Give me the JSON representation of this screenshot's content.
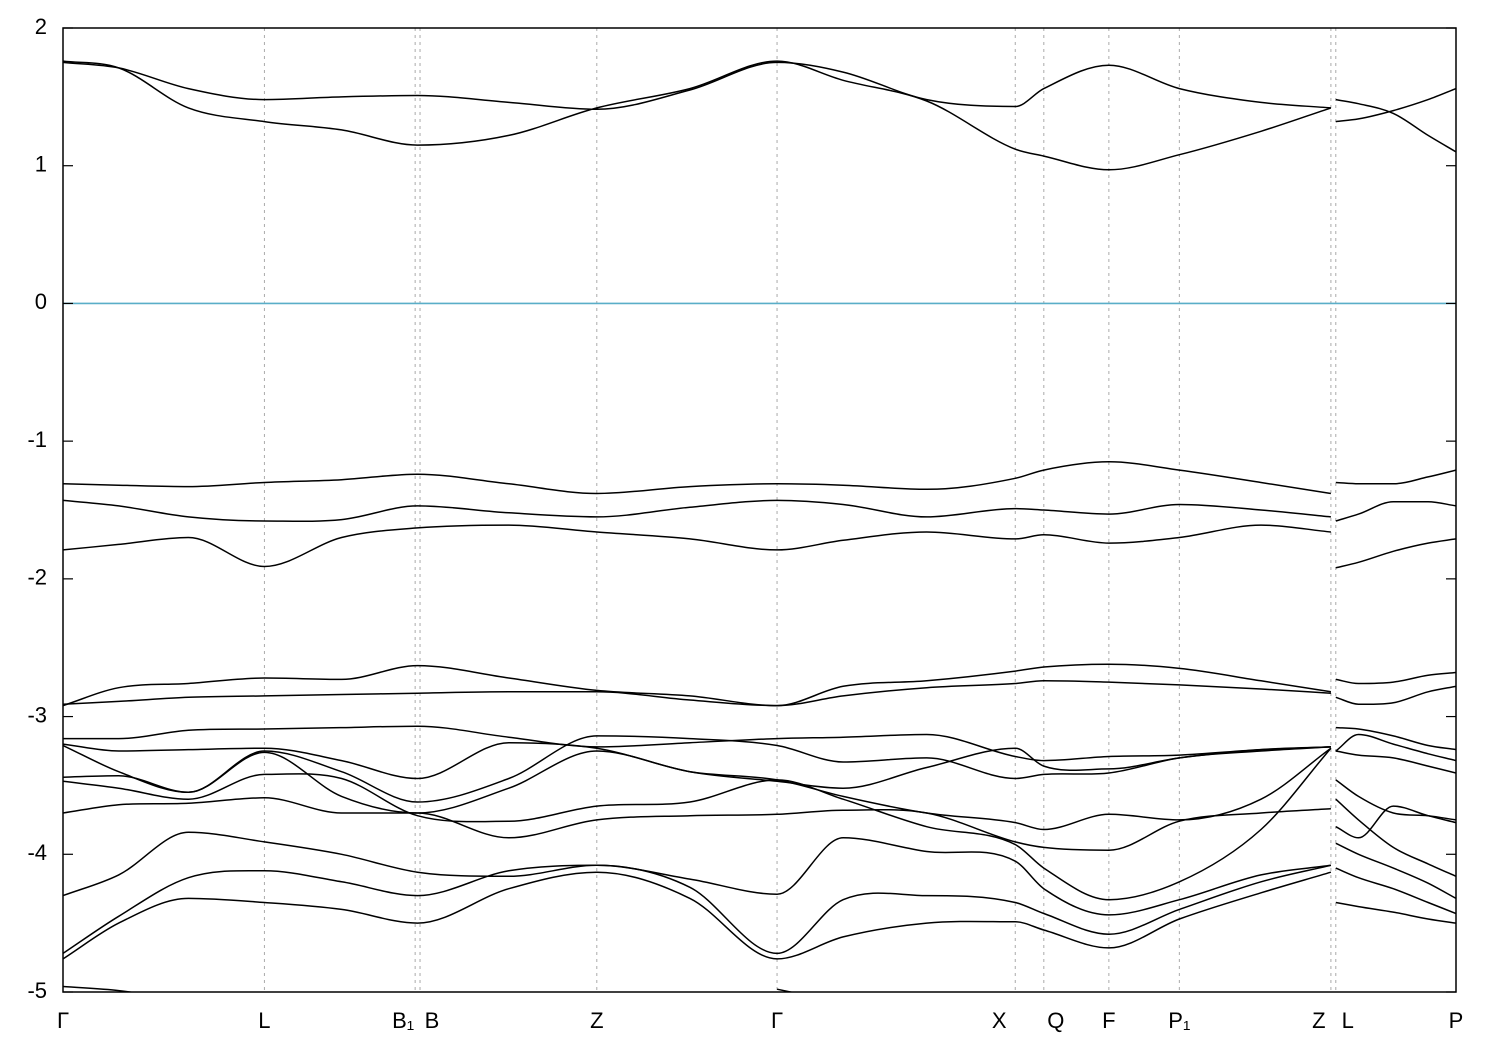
{
  "chart_data": {
    "type": "line",
    "title": "",
    "xlabel": "",
    "ylabel": "",
    "ylim": [
      -5,
      2
    ],
    "yticks": [
      2,
      1,
      0,
      -1,
      -2,
      -3,
      -4,
      -5
    ],
    "grid": "vertical dashed lines at high-symmetry points",
    "fermi_level": 0,
    "x_points": [
      {
        "label": "Γ",
        "x": 0
      },
      {
        "label": "L",
        "x": 0.1446
      },
      {
        "label": "B₁",
        "x": 0.2528
      },
      {
        "label": "B",
        "x": 0.2563
      },
      {
        "label": "Z",
        "x": 0.3832
      },
      {
        "label": "Γ",
        "x": 0.5126
      },
      {
        "label": "X",
        "x": 0.6836
      },
      {
        "label": "Q",
        "x": 0.7041
      },
      {
        "label": "F",
        "x": 0.7508
      },
      {
        "label": "P₁",
        "x": 0.8014
      },
      {
        "label": "Z",
        "x": 0.9102
      },
      {
        "label": "L",
        "x": 0.9137
      },
      {
        "label": "P",
        "x": 1.0
      }
    ],
    "segments": [
      {
        "x": [
          0,
          0.04,
          0.09,
          0.1446,
          0.2,
          0.2545,
          0.32,
          0.3832,
          0.45,
          0.5126,
          0.56,
          0.62,
          0.6836,
          0.7041,
          0.7508,
          0.8014,
          0.86,
          0.9102
        ],
        "bands": [
          [
            1.75,
            1.71,
            1.56,
            1.48,
            1.5,
            1.51,
            1.46,
            1.41,
            1.55,
            1.75,
            1.68,
            1.48,
            1.43,
            1.56,
            1.73,
            1.56,
            1.46,
            1.42
          ],
          [
            1.76,
            1.71,
            1.42,
            1.32,
            1.26,
            1.15,
            1.22,
            1.42,
            1.56,
            1.76,
            1.62,
            1.47,
            1.12,
            1.07,
            0.97,
            1.08,
            1.25,
            1.42
          ],
          [
            -1.31,
            -1.32,
            -1.33,
            -1.3,
            -1.28,
            -1.24,
            -1.31,
            -1.38,
            -1.33,
            -1.31,
            -1.32,
            -1.35,
            -1.27,
            -1.21,
            -1.15,
            -1.21,
            -1.3,
            -1.38
          ],
          [
            -1.43,
            -1.47,
            -1.55,
            -1.58,
            -1.57,
            -1.47,
            -1.52,
            -1.55,
            -1.48,
            -1.43,
            -1.46,
            -1.55,
            -1.49,
            -1.5,
            -1.53,
            -1.46,
            -1.5,
            -1.55
          ],
          [
            -1.79,
            -1.75,
            -1.7,
            -1.91,
            -1.7,
            -1.63,
            -1.61,
            -1.66,
            -1.71,
            -1.79,
            -1.72,
            -1.66,
            -1.71,
            -1.68,
            -1.74,
            -1.7,
            -1.61,
            -1.66
          ],
          [
            -2.92,
            -2.79,
            -2.76,
            -2.72,
            -2.73,
            -2.63,
            -2.72,
            -2.81,
            -2.85,
            -2.92,
            -2.78,
            -2.74,
            -2.67,
            -2.64,
            -2.62,
            -2.65,
            -2.74,
            -2.82
          ],
          [
            -2.91,
            -2.89,
            -2.86,
            -2.85,
            -2.84,
            -2.83,
            -2.82,
            -2.82,
            -2.88,
            -2.92,
            -2.85,
            -2.79,
            -2.76,
            -2.74,
            -2.75,
            -2.77,
            -2.8,
            -2.83
          ],
          [
            -3.16,
            -3.16,
            -3.1,
            -3.09,
            -3.08,
            -3.07,
            -3.15,
            -3.22,
            -3.19,
            -3.16,
            -3.15,
            -3.13,
            -3.29,
            -3.32,
            -3.29,
            -3.28,
            -3.24,
            -3.22
          ],
          [
            -3.2,
            -3.25,
            -3.24,
            -3.23,
            -3.32,
            -3.45,
            -3.19,
            -3.23,
            -3.4,
            -3.47,
            -3.52,
            -3.37,
            -3.23,
            -3.36,
            -3.38,
            -3.3,
            -3.24,
            -3.22
          ],
          [
            -3.21,
            -3.4,
            -3.55,
            -3.25,
            -3.4,
            -3.62,
            -3.45,
            -3.14,
            -3.16,
            -3.21,
            -3.33,
            -3.3,
            -3.45,
            -3.42,
            -3.41,
            -3.3,
            -3.25,
            -3.22
          ],
          [
            -3.44,
            -3.43,
            -3.55,
            -3.26,
            -3.58,
            -3.7,
            -3.52,
            -3.25,
            -3.4,
            -3.46,
            -3.58,
            -3.7,
            -3.77,
            -3.82,
            -3.71,
            -3.75,
            -3.6,
            -3.23
          ],
          [
            -3.47,
            -3.52,
            -3.6,
            -3.42,
            -3.45,
            -3.72,
            -3.76,
            -3.65,
            -3.62,
            -3.46,
            -3.6,
            -3.8,
            -3.93,
            -4.1,
            -4.33,
            -4.2,
            -3.82,
            -3.23
          ],
          [
            -3.7,
            -3.64,
            -3.63,
            -3.59,
            -3.7,
            -3.7,
            -3.88,
            -3.75,
            -3.72,
            -3.71,
            -3.68,
            -3.7,
            -3.91,
            -3.95,
            -3.97,
            -3.76,
            -3.7,
            -3.67
          ],
          [
            -4.3,
            -4.15,
            -3.84,
            -3.91,
            -4.0,
            -4.13,
            -4.16,
            -4.08,
            -4.18,
            -4.29,
            -3.88,
            -3.98,
            -4.05,
            -4.25,
            -4.44,
            -4.33,
            -4.15,
            -4.08
          ],
          [
            -4.72,
            -4.45,
            -4.17,
            -4.12,
            -4.2,
            -4.3,
            -4.12,
            -4.08,
            -4.24,
            -4.72,
            -4.33,
            -4.3,
            -4.35,
            -4.43,
            -4.58,
            -4.4,
            -4.2,
            -4.08
          ],
          [
            -4.76,
            -4.5,
            -4.32,
            -4.35,
            -4.4,
            -4.5,
            -4.25,
            -4.13,
            -4.32,
            -4.76,
            -4.6,
            -4.5,
            -4.49,
            -4.55,
            -4.68,
            -4.47,
            -4.28,
            -4.13
          ],
          [
            -4.96,
            -4.99,
            -5.07,
            null,
            null,
            null,
            null,
            null,
            null,
            -4.98,
            -5.08,
            null,
            null,
            null,
            null,
            null,
            null,
            null
          ]
        ]
      },
      {
        "x": [
          0.9137,
          0.93,
          0.955,
          0.98,
          1.0
        ],
        "bands": [
          [
            1.32,
            1.34,
            1.4,
            1.48,
            1.56
          ],
          [
            1.48,
            1.45,
            1.38,
            1.22,
            1.1
          ],
          [
            -1.3,
            -1.31,
            -1.31,
            -1.26,
            -1.21
          ],
          [
            -1.58,
            -1.53,
            -1.44,
            -1.44,
            -1.47
          ],
          [
            -1.92,
            -1.88,
            -1.8,
            -1.74,
            -1.71
          ],
          [
            -2.73,
            -2.76,
            -2.75,
            -2.7,
            -2.68
          ],
          [
            -2.86,
            -2.91,
            -2.9,
            -2.82,
            -2.78
          ],
          [
            -3.08,
            -3.09,
            -3.14,
            -3.21,
            -3.24
          ],
          [
            -3.25,
            -3.13,
            -3.2,
            -3.27,
            -3.32
          ],
          [
            -3.25,
            -3.28,
            -3.3,
            -3.36,
            -3.41
          ],
          [
            -3.46,
            -3.58,
            -3.7,
            -3.72,
            -3.75
          ],
          [
            -3.6,
            -3.75,
            -3.95,
            -4.07,
            -4.16
          ],
          [
            -3.8,
            -3.88,
            -3.65,
            -3.72,
            -3.77
          ],
          [
            -3.92,
            -4.0,
            -4.1,
            -4.21,
            -4.32
          ],
          [
            -4.1,
            -4.17,
            -4.25,
            -4.35,
            -4.43
          ],
          [
            -4.35,
            -4.38,
            -4.42,
            -4.47,
            -4.5
          ]
        ]
      }
    ]
  }
}
